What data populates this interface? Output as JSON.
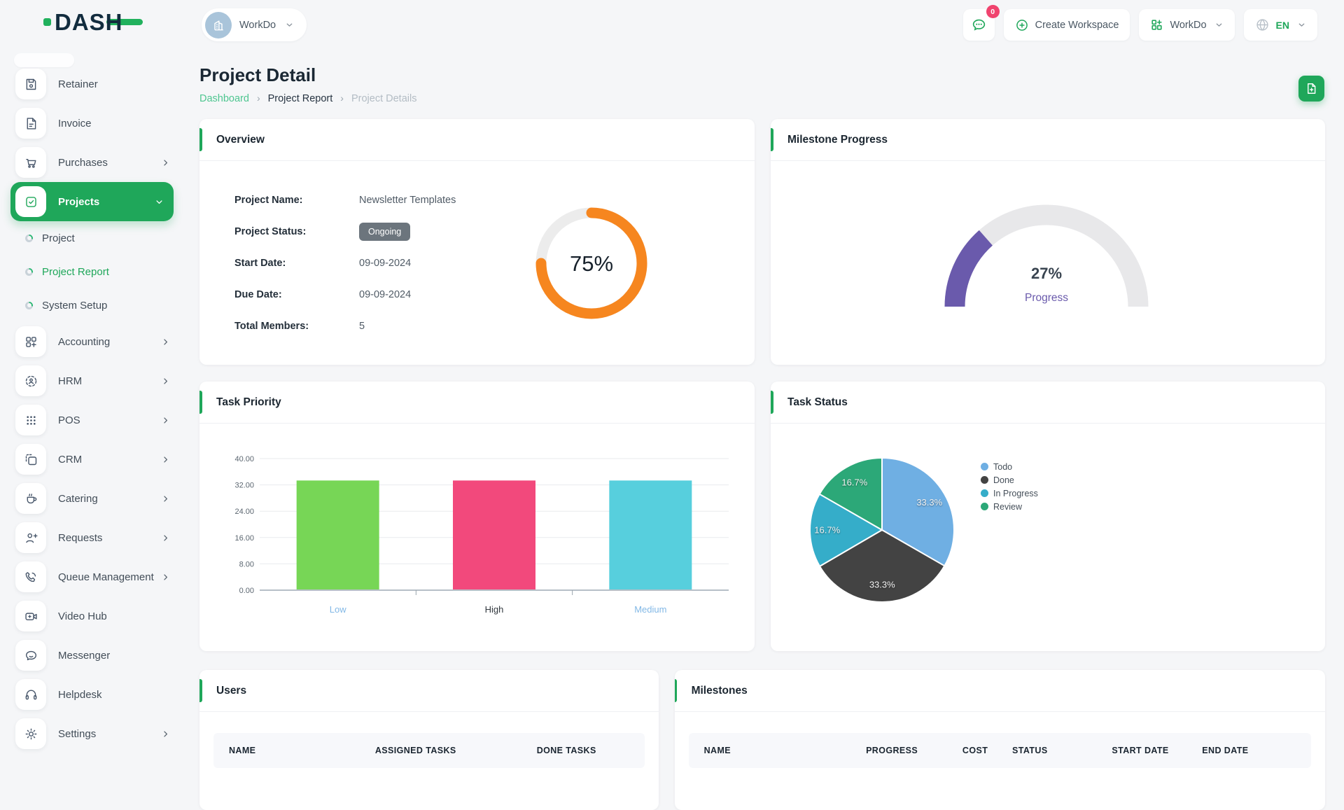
{
  "brand": {
    "logo_text": "DASH"
  },
  "topbar": {
    "workspace_label": "WorkDo",
    "messages_badge": "0",
    "create_workspace_label": "Create Workspace",
    "workspace_menu_label": "WorkDo",
    "language": "EN"
  },
  "sidebar": {
    "items": [
      {
        "label": "Retainer",
        "icon": "floppy-icon"
      },
      {
        "label": "Invoice",
        "icon": "invoice-icon"
      },
      {
        "label": "Purchases",
        "icon": "cart-icon",
        "expandable": true
      },
      {
        "label": "Projects",
        "icon": "projects-icon",
        "expandable": true,
        "expanded": true,
        "active": true
      },
      {
        "label": "Project",
        "sub": true
      },
      {
        "label": "Project Report",
        "sub": true,
        "active": true
      },
      {
        "label": "System Setup",
        "sub": true
      },
      {
        "label": "Accounting",
        "icon": "accounting-icon",
        "expandable": true
      },
      {
        "label": "HRM",
        "icon": "hrm-icon",
        "expandable": true
      },
      {
        "label": "POS",
        "icon": "pos-icon",
        "expandable": true
      },
      {
        "label": "CRM",
        "icon": "crm-icon",
        "expandable": true
      },
      {
        "label": "Catering",
        "icon": "catering-icon",
        "expandable": true
      },
      {
        "label": "Requests",
        "icon": "requests-icon",
        "expandable": true
      },
      {
        "label": "Queue Management",
        "icon": "queue-icon",
        "expandable": true
      },
      {
        "label": "Video Hub",
        "icon": "video-icon"
      },
      {
        "label": "Messenger",
        "icon": "messenger-icon"
      },
      {
        "label": "Helpdesk",
        "icon": "helpdesk-icon"
      },
      {
        "label": "Settings",
        "icon": "settings-icon",
        "expandable": true
      }
    ]
  },
  "page": {
    "title": "Project Detail",
    "breadcrumb": [
      {
        "label": "Dashboard",
        "type": "link"
      },
      {
        "label": "Project Report",
        "type": "link-dark"
      },
      {
        "label": "Project Details",
        "type": "current"
      }
    ]
  },
  "cards": {
    "overview": {
      "title": "Overview",
      "fields": [
        {
          "label": "Project Name:",
          "value": "Newsletter Templates"
        },
        {
          "label": "Project Status:",
          "value": "Ongoing",
          "badge": true
        },
        {
          "label": "Start Date:",
          "value": "09-09-2024"
        },
        {
          "label": "Due Date:",
          "value": "09-09-2024"
        },
        {
          "label": "Total Members:",
          "value": "5"
        }
      ]
    },
    "milestone_progress": {
      "title": "Milestone Progress"
    },
    "task_priority": {
      "title": "Task Priority"
    },
    "task_status": {
      "title": "Task Status"
    },
    "users": {
      "title": "Users",
      "columns": [
        "NAME",
        "ASSIGNED TASKS",
        "DONE TASKS"
      ]
    },
    "milestones": {
      "title": "Milestones",
      "columns": [
        "NAME",
        "PROGRESS",
        "COST",
        "STATUS",
        "START DATE",
        "END DATE"
      ]
    }
  },
  "chart_data": [
    {
      "id": "overview-progress",
      "type": "donut",
      "value": 75,
      "label": "75%",
      "color": "#f6861f",
      "track": "#ececec"
    },
    {
      "id": "milestone-progress",
      "type": "gauge",
      "value": 27,
      "label": "27%",
      "sublabel": "Progress",
      "color": "#6a5aac",
      "track": "#e8e8ea"
    },
    {
      "id": "task-priority",
      "type": "bar",
      "categories": [
        "Low",
        "High",
        "Medium"
      ],
      "values": [
        33.33,
        33.33,
        33.33
      ],
      "bar_colors": [
        "#77d656",
        "#f2497c",
        "#57cfdd"
      ],
      "tick_colors": [
        "#82b8e6",
        "#32383e",
        "#82b8e6"
      ],
      "ylim": [
        0,
        40
      ],
      "ytick_step": 8,
      "grid": true,
      "legend_position": "none"
    },
    {
      "id": "task-status",
      "type": "pie",
      "labels": [
        "Todo",
        "Done",
        "In Progress",
        "Review"
      ],
      "values": [
        33.3,
        33.3,
        16.7,
        16.7
      ],
      "slice_labels": [
        "33.3%",
        "33.3%",
        "16.7%",
        "16.7%"
      ],
      "colors": [
        "#6fafe3",
        "#434343",
        "#35adc9",
        "#2ca878"
      ],
      "legend_position": "right"
    }
  ],
  "colors": {
    "primary_green": "#1fa75a",
    "breadcrumb_green": "#4ec690",
    "badge_gray": "#6c757d",
    "notification_pink": "#f0436e"
  }
}
